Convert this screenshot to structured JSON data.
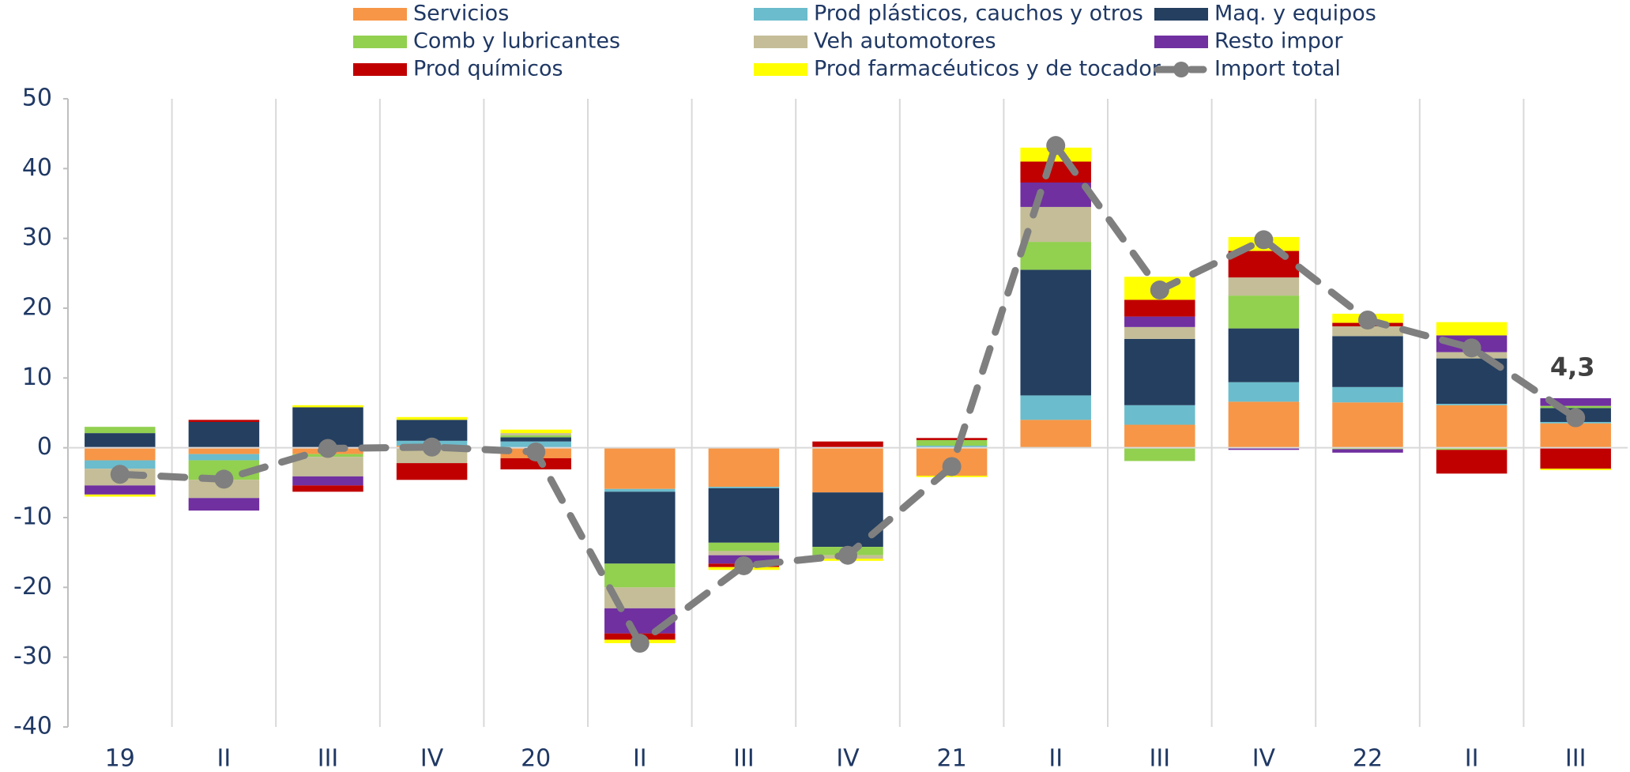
{
  "chart_data": {
    "type": "bar",
    "stacked": true,
    "categories": [
      "19",
      "II",
      "III",
      "IV",
      "20",
      "II",
      "III",
      "IV",
      "21",
      "II",
      "III",
      "IV",
      "22",
      "II",
      "III"
    ],
    "ylim": [
      -40,
      50
    ],
    "yticks": [
      -40,
      -30,
      -20,
      -10,
      0,
      10,
      20,
      30,
      40,
      50
    ],
    "grid": "x",
    "legend": "top",
    "series": [
      {
        "name": "Servicios",
        "color": "#f79646",
        "values": [
          -1.8,
          -0.9,
          -0.9,
          0.3,
          -1.5,
          -5.9,
          -5.6,
          -6.4,
          -4.0,
          4.0,
          3.3,
          6.6,
          6.5,
          6.1,
          3.5
        ]
      },
      {
        "name": "Prod plásticos, cauchos y otros",
        "color": "#6bbccc",
        "values": [
          -1.2,
          -0.9,
          0,
          0.7,
          0.9,
          -0.4,
          -0.2,
          0,
          0.3,
          3.5,
          2.8,
          2.8,
          2.2,
          0.2,
          0.2
        ]
      },
      {
        "name": "Maq. y equipos",
        "color": "#243f60",
        "values": [
          2.1,
          3.7,
          5.8,
          3.0,
          0.6,
          -10.3,
          -7.8,
          -7.8,
          0,
          18.0,
          9.5,
          7.7,
          7.3,
          6.5,
          2.0
        ]
      },
      {
        "name": "Comb y lubricantes",
        "color": "#92d050",
        "values": [
          0.9,
          -2.8,
          -0.4,
          0,
          0.3,
          -3.4,
          -1.2,
          -1.2,
          0.8,
          4.0,
          -1.9,
          4.7,
          -0.2,
          -0.3,
          0.3
        ]
      },
      {
        "name": "Veh automotores",
        "color": "#c4bd97",
        "values": [
          -2.4,
          -2.6,
          -2.8,
          -2.2,
          0.3,
          -3.0,
          -0.6,
          -0.5,
          0,
          5.0,
          1.7,
          2.6,
          1.4,
          0.9,
          0
        ]
      },
      {
        "name": "Resto impor",
        "color": "#7030a0",
        "values": [
          -1.3,
          -1.8,
          -1.3,
          0,
          0,
          -3.6,
          -1.2,
          0,
          0,
          3.5,
          1.5,
          -0.3,
          -0.5,
          2.4,
          1.1
        ]
      },
      {
        "name": "Prod químicos",
        "color": "#c00000",
        "values": [
          0,
          0.3,
          -0.9,
          -2.4,
          -1.6,
          -0.9,
          -0.5,
          0.9,
          0.3,
          3.0,
          2.4,
          3.8,
          0.5,
          -3.4,
          -3.0
        ]
      },
      {
        "name": "Prod farmacéuticos y de tocador",
        "color": "#ffff00",
        "values": [
          -0.3,
          0,
          0.3,
          0.4,
          0.5,
          -0.5,
          -0.4,
          -0.3,
          -0.2,
          2.0,
          3.3,
          2.0,
          1.3,
          1.9,
          -0.2
        ]
      },
      {
        "name": "Import total",
        "color": "#7f7f7f",
        "type": "line",
        "dashed": true,
        "values": [
          -3.8,
          -4.5,
          -0.1,
          0.1,
          -0.6,
          -28.0,
          -16.9,
          -15.4,
          -2.7,
          43.3,
          22.6,
          29.8,
          18.3,
          14.3,
          4.3
        ],
        "value_labels": [
          null,
          null,
          null,
          null,
          null,
          null,
          null,
          null,
          null,
          null,
          null,
          null,
          null,
          null,
          "4,3"
        ]
      }
    ]
  }
}
